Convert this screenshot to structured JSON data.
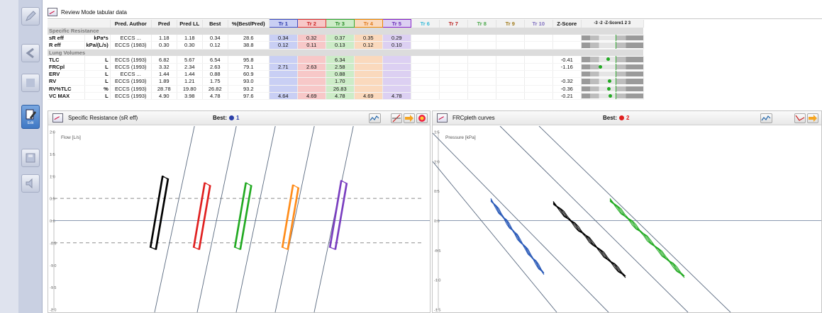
{
  "toolbar": {
    "edit_label": "Edit"
  },
  "table": {
    "title": "Review Mode tabular data",
    "headers": [
      "Pred. Author",
      "Pred",
      "Pred LL",
      "Best",
      "%(Best/Pred)",
      "Tr 1",
      "Tr 2",
      "Tr 3",
      "Tr 4",
      "Tr 5",
      "Tr 6",
      "Tr 7",
      "Tr 8",
      "Tr 9",
      "Tr 10",
      "Z-Score",
      "-3 -2 -Z-Score1 2 3"
    ],
    "sections": [
      {
        "label": "Specific Resistance",
        "rows": [
          {
            "name": "sR eff",
            "unit": "kPa*s",
            "author": "ECCS ...",
            "pred": "1.18",
            "predll": "1.18",
            "best": "0.34",
            "pct": "28.6",
            "tr": [
              "0.34",
              "0.32",
              "0.37",
              "0.35",
              "0.29"
            ],
            "z": "",
            "z_value": null
          },
          {
            "name": "R eff",
            "unit": "kPa/(L/s)",
            "author": "ECCS (1983)",
            "pred": "0.30",
            "predll": "0.30",
            "best": "0.12",
            "pct": "38.8",
            "tr": [
              "0.12",
              "0.11",
              "0.13",
              "0.12",
              "0.10"
            ],
            "z": "",
            "z_value": null
          }
        ]
      },
      {
        "label": "Lung Volumes",
        "rows": [
          {
            "name": "TLC",
            "unit": "L",
            "author": "ECCS (1993)",
            "pred": "6.82",
            "predll": "5.67",
            "best": "6.54",
            "pct": "95.8",
            "tr": [
              "",
              "",
              "6.34",
              "",
              ""
            ],
            "z": "-0.41",
            "z_value": -0.41
          },
          {
            "name": "FRCpl",
            "unit": "L",
            "author": "ECCS (1993)",
            "pred": "3.32",
            "predll": "2.34",
            "best": "2.63",
            "pct": "79.1",
            "tr": [
              "2.71",
              "2.63",
              "2.58",
              "",
              ""
            ],
            "z": "-1.16",
            "z_value": -1.16
          },
          {
            "name": "ERV",
            "unit": "L",
            "author": "ECCS ...",
            "pred": "1.44",
            "predll": "1.44",
            "best": "0.88",
            "pct": "60.9",
            "tr": [
              "",
              "",
              "0.88",
              "",
              ""
            ],
            "z": "",
            "z_value": null
          },
          {
            "name": "RV",
            "unit": "L",
            "author": "ECCS (1993)",
            "pred": "1.89",
            "predll": "1.21",
            "best": "1.75",
            "pct": "93.0",
            "tr": [
              "",
              "",
              "1.70",
              "",
              ""
            ],
            "z": "-0.32",
            "z_value": -0.32
          },
          {
            "name": "RV%TLC",
            "unit": "%",
            "author": "ECCS (1993)",
            "pred": "28.78",
            "predll": "19.80",
            "best": "26.82",
            "pct": "93.2",
            "tr": [
              "",
              "",
              "26.83",
              "",
              ""
            ],
            "z": "-0.36",
            "z_value": -0.36
          },
          {
            "name": "VC MAX",
            "unit": "L",
            "author": "ECCS (1993)",
            "pred": "4.90",
            "predll": "3.98",
            "best": "4.78",
            "pct": "97.6",
            "tr": [
              "4.64",
              "4.69",
              "4.78",
              "4.69",
              "4.78"
            ],
            "z": "-0.21",
            "z_value": -0.21
          }
        ]
      }
    ]
  },
  "panel_left": {
    "title": "Specific Resistance (sR eff)",
    "best_label": "Best:",
    "best_value": "1",
    "best_color": "#2a3fa8"
  },
  "panel_right": {
    "title": "FRCpleth curves",
    "best_label": "Best:",
    "best_value": "2",
    "best_color": "#e02020"
  },
  "chart_data": [
    {
      "type": "line",
      "title": "Specific Resistance (sR eff)",
      "ylabel": "Flow [L/s]",
      "ylim": [
        -2.0,
        2.0
      ],
      "yticks": [
        "2.0",
        "1.5",
        "1.0",
        "0.5",
        "0.0",
        "-0.5",
        "-1.0",
        "-1.5",
        "-2.0"
      ],
      "reference_lines": [
        0.5,
        -0.5
      ],
      "series": [
        {
          "color": "#000000",
          "y_range": [
            -0.6,
            1.0
          ]
        },
        {
          "color": "#e02020",
          "y_range": [
            -0.6,
            0.85
          ]
        },
        {
          "color": "#22aa22",
          "y_range": [
            -0.6,
            0.85
          ]
        },
        {
          "color": "#ff8c1a",
          "y_range": [
            -0.6,
            0.8
          ]
        },
        {
          "color": "#7a3fc0",
          "y_range": [
            -0.6,
            0.9
          ]
        }
      ]
    },
    {
      "type": "line",
      "title": "FRCpleth curves",
      "ylabel": "Pressure [kPa]",
      "ylim": [
        -1.5,
        1.5
      ],
      "yticks": [
        "1.5",
        "1.0",
        "0.5",
        "0.0",
        "-0.5",
        "-1.0",
        "-1.5"
      ],
      "series": [
        {
          "color": "#2a5ab8",
          "y_range": [
            -0.9,
            0.35
          ]
        },
        {
          "color": "#000000",
          "y_range": [
            -0.95,
            0.3
          ]
        },
        {
          "color": "#22aa22",
          "y_range": [
            -0.95,
            0.35
          ]
        }
      ]
    }
  ]
}
